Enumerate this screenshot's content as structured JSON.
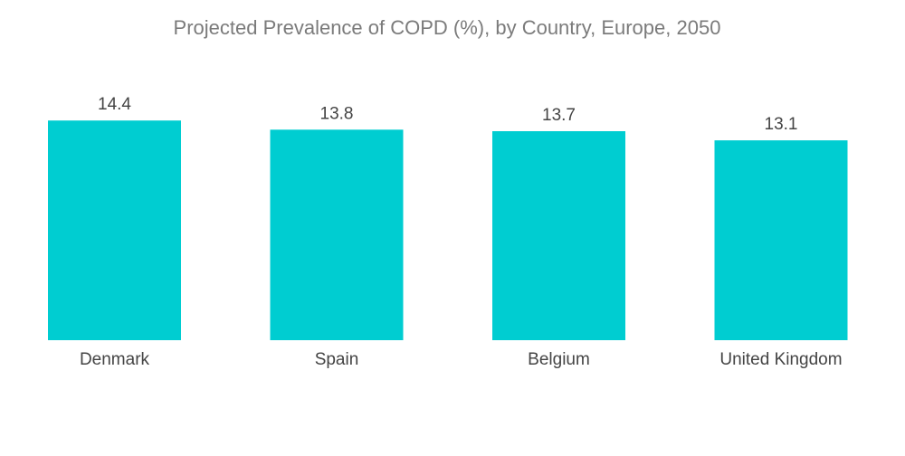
{
  "chart_data": {
    "type": "bar",
    "title": "Projected Prevalence of COPD (%), by Country, Europe, 2050",
    "categories": [
      "Denmark",
      "Spain",
      "Belgium",
      "United Kingdom"
    ],
    "values": [
      14.4,
      13.8,
      13.7,
      13.1
    ],
    "value_labels": [
      "14.4",
      "13.8",
      "13.7",
      "13.1"
    ],
    "xlabel": "",
    "ylabel": "",
    "ylim": [
      0,
      22.3
    ],
    "grid": false,
    "legend": "none",
    "bar_color": "#00CDD1"
  }
}
